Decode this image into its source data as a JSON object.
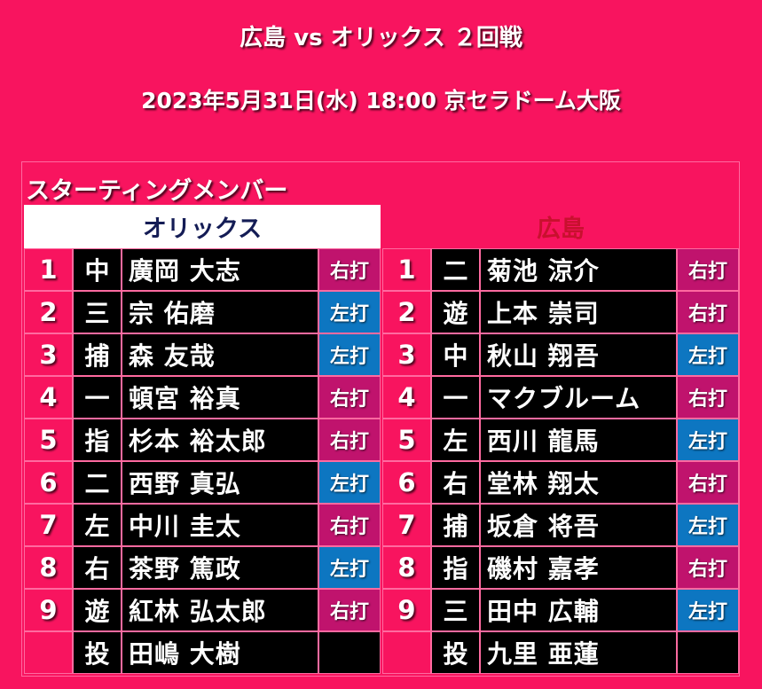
{
  "header": {
    "title": "広島 vs オリックス ２回戦",
    "subtitle": "2023年5月31日(水) 18:00 京セラドーム大阪"
  },
  "lineup": {
    "label": "スターティングメンバー",
    "left": {
      "team": "オリックス",
      "rows": [
        {
          "num": "1",
          "pos": "中",
          "name": "廣岡 大志",
          "bat": "右打"
        },
        {
          "num": "2",
          "pos": "三",
          "name": "宗 佑磨",
          "bat": "左打"
        },
        {
          "num": "3",
          "pos": "捕",
          "name": "森 友哉",
          "bat": "左打"
        },
        {
          "num": "4",
          "pos": "一",
          "name": "頓宮 裕真",
          "bat": "右打"
        },
        {
          "num": "5",
          "pos": "指",
          "name": "杉本 裕太郎",
          "bat": "右打"
        },
        {
          "num": "6",
          "pos": "二",
          "name": "西野 真弘",
          "bat": "左打"
        },
        {
          "num": "7",
          "pos": "左",
          "name": "中川 圭太",
          "bat": "右打"
        },
        {
          "num": "8",
          "pos": "右",
          "name": "茶野 篤政",
          "bat": "左打"
        },
        {
          "num": "9",
          "pos": "遊",
          "name": "紅林 弘太郎",
          "bat": "右打"
        },
        {
          "num": "",
          "pos": "投",
          "name": "田嶋 大樹",
          "bat": ""
        }
      ]
    },
    "right": {
      "team": "広島",
      "rows": [
        {
          "num": "1",
          "pos": "二",
          "name": "菊池 涼介",
          "bat": "右打"
        },
        {
          "num": "2",
          "pos": "遊",
          "name": "上本 崇司",
          "bat": "右打"
        },
        {
          "num": "3",
          "pos": "中",
          "name": "秋山 翔吾",
          "bat": "左打"
        },
        {
          "num": "4",
          "pos": "一",
          "name": "マクブルーム",
          "bat": "右打"
        },
        {
          "num": "5",
          "pos": "左",
          "name": "西川 龍馬",
          "bat": "左打"
        },
        {
          "num": "6",
          "pos": "右",
          "name": "堂林 翔太",
          "bat": "右打"
        },
        {
          "num": "7",
          "pos": "捕",
          "name": "坂倉 将吾",
          "bat": "左打"
        },
        {
          "num": "8",
          "pos": "指",
          "name": "磯村 嘉孝",
          "bat": "右打"
        },
        {
          "num": "9",
          "pos": "三",
          "name": "田中 広輔",
          "bat": "左打"
        },
        {
          "num": "",
          "pos": "投",
          "name": "九里 亜蓮",
          "bat": ""
        }
      ]
    }
  },
  "colors": {
    "background": "#f8145f",
    "right_handed": "#c0136d",
    "left_handed": "#0d76c1",
    "cell": "#000000",
    "away_team_text": "#141c55",
    "home_team_text": "#c8102e"
  }
}
